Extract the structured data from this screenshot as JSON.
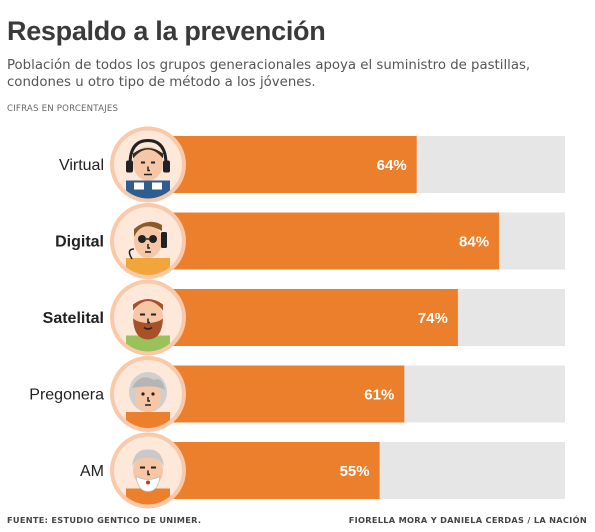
{
  "chart_data": {
    "type": "bar",
    "orientation": "horizontal",
    "title": "Respaldo a la prevención",
    "subtitle": "Población de todos los grupos generacionales apoya el suministro de pastillas, condones u otro tipo de método  a los jóvenes.",
    "units_note": "CIFRAS EN PORCENTAJES",
    "categories": [
      "Virtual",
      "Digital",
      "Satelital",
      "Pregonera",
      "AM"
    ],
    "bold_categories": [
      "Digital",
      "Satelital"
    ],
    "values": [
      64,
      84,
      74,
      61,
      55
    ],
    "value_labels": [
      "64%",
      "84%",
      "74%",
      "61%",
      "55%"
    ],
    "xlim": [
      0,
      100
    ],
    "grid": false,
    "legend": "none",
    "icons": [
      "virtual-avatar-icon",
      "digital-avatar-icon",
      "satelital-avatar-icon",
      "pregonera-avatar-icon",
      "am-avatar-icon"
    ]
  },
  "footer": {
    "source": "FUENTE: ESTUDIO GENTICO DE UNIMER.",
    "credit": "FIORELLA MORA Y DANIELA CERDAS / LA NACIÓN"
  },
  "colors": {
    "bar": "#ec7f2b",
    "track": "#e6e6e6",
    "avatar_ring": "#f9c9a9",
    "avatar_bg": "#fde8d9",
    "skin": "#f5c7a6",
    "title": "#3a3a3a"
  }
}
